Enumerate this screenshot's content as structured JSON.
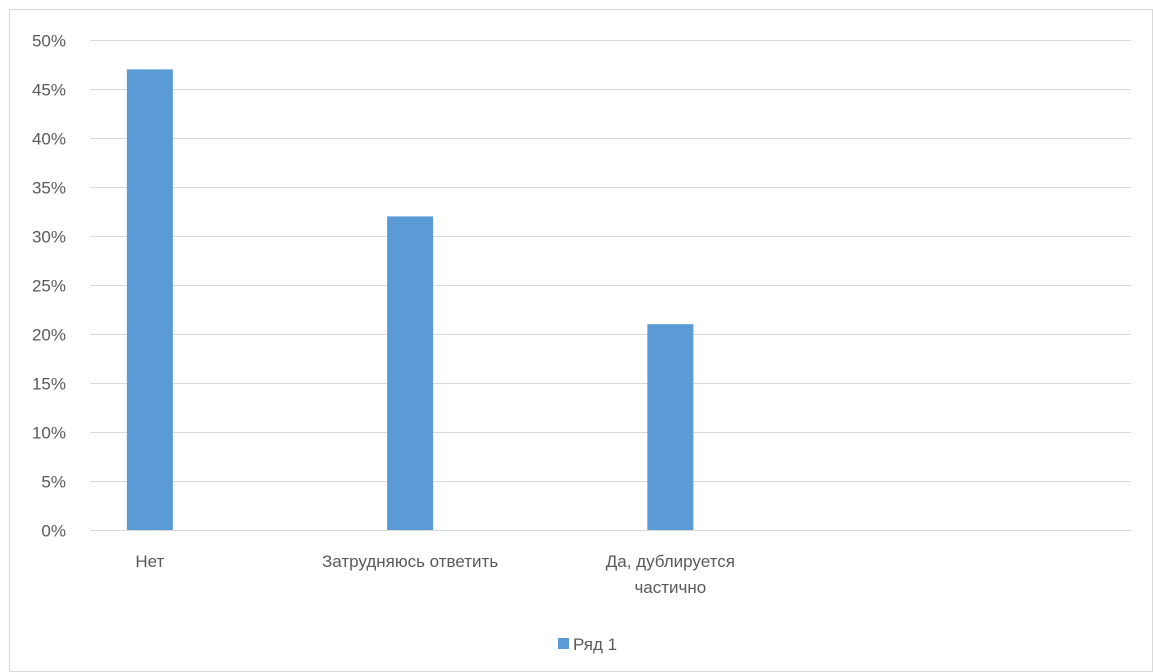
{
  "chart_data": {
    "type": "bar",
    "categories": [
      "Нет",
      "Затрудняюсь ответить",
      "Да, дублируется частично",
      ""
    ],
    "category_lines": [
      [
        "Нет"
      ],
      [
        "Затрудняюсь ответить"
      ],
      [
        "Да, дублируется",
        "частично"
      ],
      []
    ],
    "series": [
      {
        "name": "Ряд 1",
        "values": [
          0.47,
          0.32,
          0.21,
          null
        ],
        "color": "#5b9bd5"
      }
    ],
    "ylim": [
      0,
      0.5
    ],
    "yticks": [
      0,
      0.05,
      0.1,
      0.15,
      0.2,
      0.25,
      0.3,
      0.35,
      0.4,
      0.45,
      0.5
    ],
    "ytick_labels": [
      "0%",
      "5%",
      "10%",
      "15%",
      "20%",
      "25%",
      "30%",
      "35%",
      "40%",
      "45%",
      "50%"
    ],
    "grid": true,
    "gridline_color": "#d9d9d9",
    "text_color": "#595959",
    "legend": {
      "position": "bottom",
      "entries": [
        "Ряд 1"
      ]
    },
    "title": "",
    "xlabel": "",
    "ylabel": ""
  }
}
